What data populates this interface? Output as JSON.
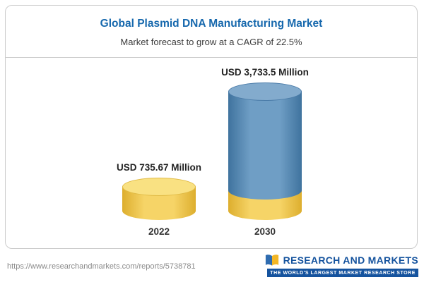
{
  "header": {
    "title": "Global Plasmid DNA Manufacturing Market",
    "subtitle": "Market forecast to grow at a CAGR of 22.5%"
  },
  "chart_data": {
    "type": "bar",
    "title": "Global Plasmid DNA Manufacturing Market",
    "subtitle": "Market forecast to grow at a CAGR of 22.5%",
    "unit": "USD Million",
    "cagr": "22.5%",
    "categories": [
      "2022",
      "2030"
    ],
    "values": [
      735.67,
      3733.5
    ],
    "value_labels": [
      "USD 735.67 Million",
      "USD 3,733.5 Million"
    ],
    "ylim": [
      0,
      3733.5
    ],
    "legend_position": "none",
    "grid": false,
    "colors": {
      "bar_2022": "#f2c94c",
      "bar_2030_body": "#4d80ae",
      "bar_2030_base": "#f2c94c",
      "accent_blue": "#1668ad"
    }
  },
  "footer": {
    "source_url": "https://www.researchandmarkets.com/reports/5738781",
    "brand_name": "RESEARCH AND MARKETS",
    "brand_tagline": "THE WORLD'S LARGEST MARKET RESEARCH STORE"
  }
}
